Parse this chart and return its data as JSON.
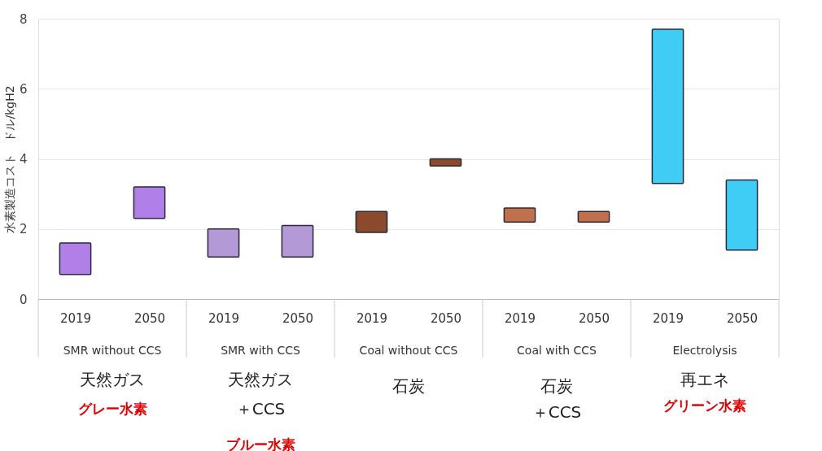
{
  "chart_data": {
    "type": "bar",
    "ylabel": "水素製造コスト　ドル/kgH2",
    "categories": [
      "2019",
      "2050",
      "2019",
      "2050",
      "2019",
      "2050",
      "2019",
      "2050",
      "2019",
      "2050"
    ],
    "base": [
      0.7,
      2.3,
      1.2,
      1.2,
      1.9,
      3.8,
      2.2,
      2.2,
      3.3,
      1.4
    ],
    "values": [
      0.9,
      0.9,
      0.8,
      0.9,
      0.6,
      0.2,
      0.4,
      0.3,
      4.4,
      2.0
    ],
    "colors": [
      "#b07fe8",
      "#b07fe8",
      "#b39ad6",
      "#b39ad6",
      "#8b4a2b",
      "#8b4a2b",
      "#c0714b",
      "#c0714b",
      "#3fcdf5",
      "#3fcdf5"
    ],
    "ylim": [
      0,
      8
    ],
    "yticks": [
      0,
      2,
      4,
      6,
      8
    ],
    "grid": "y",
    "annotations": [
      "SMR without CCS",
      "SMR with CCS",
      "Coal without CCS",
      "Coal with CCS",
      "Electrolysis",
      "天然ガス",
      "グレー水素",
      "天然ガス",
      "＋CCS",
      "ブルー水素",
      "石炭",
      "石炭",
      "＋CCS",
      "再エネ",
      "グリーン水素"
    ]
  }
}
